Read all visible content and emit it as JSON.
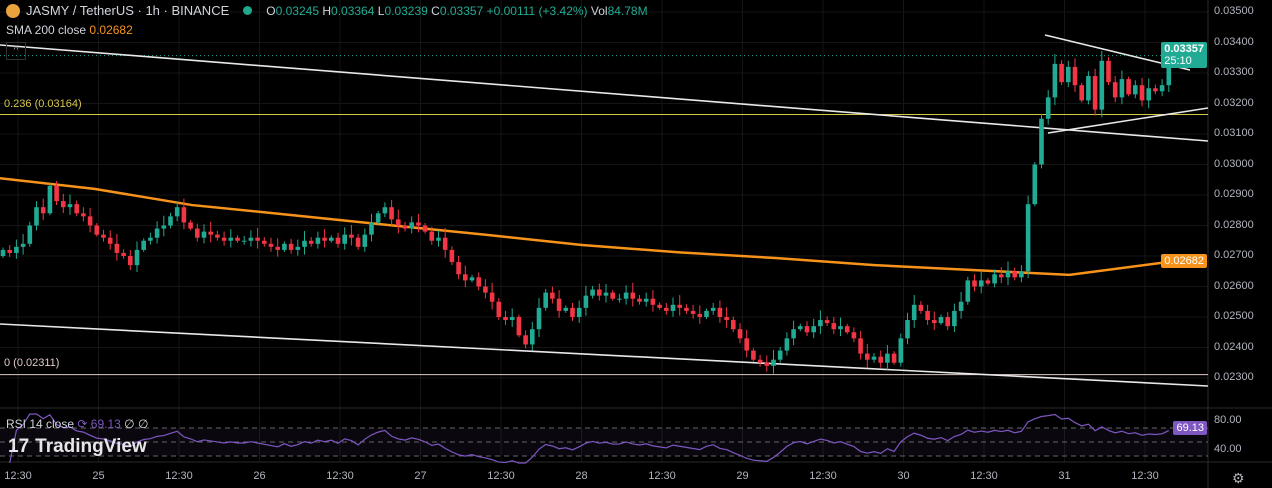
{
  "header": {
    "symbol": "JASMY / TetherUS · 1h · BINANCE",
    "o_label": "O",
    "o": "0.03245",
    "h_label": "H",
    "h": "0.03364",
    "l_label": "L",
    "l": "0.03239",
    "c_label": "C",
    "c": "0.03357",
    "change": "+0.00111 (+3.42%)",
    "vol_label": "Vol",
    "vol": "84.78M"
  },
  "sma": {
    "label": "SMA 200 close",
    "value": "0.02682",
    "color": "#f7931a"
  },
  "fib": [
    {
      "label": "0.236 (0.03164)",
      "price": 0.03164,
      "color": "#d4c64a"
    },
    {
      "label": "0 (0.02311)",
      "price": 0.02311,
      "color": "#e0c8c8"
    }
  ],
  "price_axis": [
    "0.03500",
    "0.03400",
    "0.03300",
    "0.03200",
    "0.03100",
    "0.03000",
    "0.02900",
    "0.02800",
    "0.02700",
    "0.02600",
    "0.02500",
    "0.02400",
    "0.02300"
  ],
  "last_price": {
    "value": "0.03357",
    "countdown": "25:10",
    "color": "#22ab94"
  },
  "sma_tag": "0.02682",
  "rsi": {
    "label": "RSI 14 close",
    "value": "69.13",
    "extra": "∅ ∅",
    "axis": [
      "80.00",
      "40.00"
    ],
    "color": "#7e57c2"
  },
  "brand": "TradingView",
  "time_axis": [
    "12:30",
    "25",
    "12:30",
    "26",
    "12:30",
    "27",
    "12:30",
    "28",
    "12:30",
    "29",
    "12:30",
    "30",
    "12:30",
    "31",
    "12:30"
  ],
  "colors": {
    "up": "#22ab94",
    "down": "#f23645",
    "background": "#000000"
  },
  "chart_data": {
    "type": "candlestick",
    "interval": "1h",
    "ylim": [
      0.0225,
      0.0352
    ],
    "first_open": 0.027,
    "closes": [
      0.0272,
      0.0271,
      0.0273,
      0.0274,
      0.028,
      0.0286,
      0.0284,
      0.0293,
      0.0288,
      0.0286,
      0.0287,
      0.0284,
      0.0283,
      0.028,
      0.0277,
      0.0276,
      0.0274,
      0.0271,
      0.027,
      0.0267,
      0.0272,
      0.0275,
      0.0276,
      0.0279,
      0.028,
      0.0283,
      0.0286,
      0.0281,
      0.0279,
      0.0276,
      0.0278,
      0.0277,
      0.0276,
      0.0275,
      0.0276,
      0.0275,
      0.0275,
      0.0276,
      0.0275,
      0.0274,
      0.0273,
      0.0272,
      0.0274,
      0.0272,
      0.0273,
      0.0275,
      0.0274,
      0.0276,
      0.0275,
      0.0276,
      0.0274,
      0.0277,
      0.0276,
      0.0273,
      0.0277,
      0.0281,
      0.0284,
      0.0286,
      0.0282,
      0.028,
      0.0279,
      0.0281,
      0.028,
      0.0278,
      0.0275,
      0.0276,
      0.0272,
      0.0268,
      0.0264,
      0.0262,
      0.0263,
      0.026,
      0.0258,
      0.0255,
      0.025,
      0.0249,
      0.025,
      0.0244,
      0.0241,
      0.0246,
      0.0253,
      0.0258,
      0.0256,
      0.0252,
      0.0253,
      0.025,
      0.0253,
      0.0257,
      0.0259,
      0.0257,
      0.0258,
      0.0256,
      0.0256,
      0.0258,
      0.0256,
      0.0255,
      0.0256,
      0.0254,
      0.0253,
      0.0252,
      0.0254,
      0.0253,
      0.0252,
      0.0251,
      0.025,
      0.0252,
      0.0253,
      0.025,
      0.0249,
      0.0246,
      0.0243,
      0.0239,
      0.0236,
      0.0235,
      0.0234,
      0.0236,
      0.0239,
      0.0243,
      0.0246,
      0.0247,
      0.0245,
      0.0247,
      0.0249,
      0.0248,
      0.0246,
      0.0247,
      0.0245,
      0.0243,
      0.0238,
      0.0236,
      0.0237,
      0.0235,
      0.0238,
      0.0235,
      0.0243,
      0.0249,
      0.0254,
      0.0252,
      0.0249,
      0.0248,
      0.025,
      0.0247,
      0.0252,
      0.0255,
      0.0262,
      0.026,
      0.0262,
      0.0261,
      0.0264,
      0.0263,
      0.0265,
      0.0263,
      0.0265,
      0.0287,
      0.03,
      0.0315,
      0.0322,
      0.0333,
      0.0327,
      0.0332,
      0.0326,
      0.0321,
      0.0329,
      0.0318,
      0.0334,
      0.0327,
      0.0322,
      0.0328,
      0.0323,
      0.0326,
      0.0321,
      0.0325,
      0.0324,
      0.0326,
      0.03357
    ],
    "sma200": [
      0.02956,
      0.0292,
      0.02867,
      0.02835,
      0.02802,
      0.0277,
      0.02736,
      0.02712,
      0.02693,
      0.0267,
      0.02654,
      0.02638,
      0.0268
    ]
  }
}
